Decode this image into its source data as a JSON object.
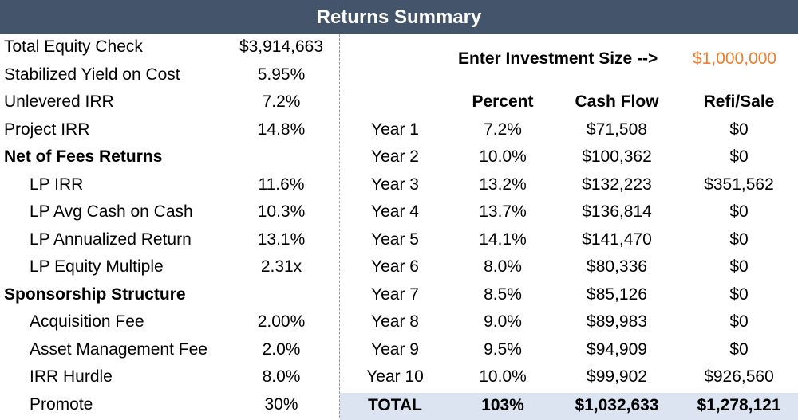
{
  "title": "Returns Summary",
  "left": {
    "rows": [
      {
        "label": "Total Equity Check",
        "value": "$3,914,663",
        "style": "normal"
      },
      {
        "label": "Stabilized Yield on Cost",
        "value": "5.95%",
        "style": "normal"
      },
      {
        "label": "Unlevered IRR",
        "value": "7.2%",
        "style": "normal"
      },
      {
        "label": "Project IRR",
        "value": "14.8%",
        "style": "normal"
      },
      {
        "label": "Net of Fees Returns",
        "value": "",
        "style": "bold"
      },
      {
        "label": "LP IRR",
        "value": "11.6%",
        "style": "indent"
      },
      {
        "label": "LP Avg Cash on Cash",
        "value": "10.3%",
        "style": "indent"
      },
      {
        "label": "LP Annualized Return",
        "value": "13.1%",
        "style": "indent"
      },
      {
        "label": "LP Equity Multiple",
        "value": "2.31x",
        "style": "indent"
      },
      {
        "label": "Sponsorship Structure",
        "value": "",
        "style": "bold"
      },
      {
        "label": "Acquisition Fee",
        "value": "2.00%",
        "style": "indent"
      },
      {
        "label": "Asset Management Fee",
        "value": "2.0%",
        "style": "indent"
      },
      {
        "label": "IRR Hurdle",
        "value": "8.0%",
        "style": "indent"
      },
      {
        "label": "Promote",
        "value": "30%",
        "style": "indent"
      }
    ]
  },
  "investment": {
    "label": "Enter Investment Size -->",
    "value": "$1,000,000",
    "value_color": "#ed7d31"
  },
  "table": {
    "headers": [
      "",
      "Percent",
      "Cash Flow",
      "Refi/Sale"
    ],
    "rows": [
      [
        "Year 1",
        "7.2%",
        "$71,508",
        "$0"
      ],
      [
        "Year 2",
        "10.0%",
        "$100,362",
        "$0"
      ],
      [
        "Year 3",
        "13.2%",
        "$132,223",
        "$351,562"
      ],
      [
        "Year 4",
        "13.7%",
        "$136,814",
        "$0"
      ],
      [
        "Year 5",
        "14.1%",
        "$141,470",
        "$0"
      ],
      [
        "Year 6",
        "8.0%",
        "$80,336",
        "$0"
      ],
      [
        "Year 7",
        "8.5%",
        "$85,126",
        "$0"
      ],
      [
        "Year 8",
        "9.0%",
        "$89,983",
        "$0"
      ],
      [
        "Year 9",
        "9.5%",
        "$94,909",
        "$0"
      ],
      [
        "Year 10",
        "10.0%",
        "$99,902",
        "$926,560"
      ]
    ],
    "total": [
      "TOTAL",
      "103%",
      "$1,032,633",
      "$1,278,121"
    ]
  },
  "colors": {
    "title_bar": "#44546a",
    "total_row": "#dce3f1",
    "input_value": "#ed7d31"
  }
}
